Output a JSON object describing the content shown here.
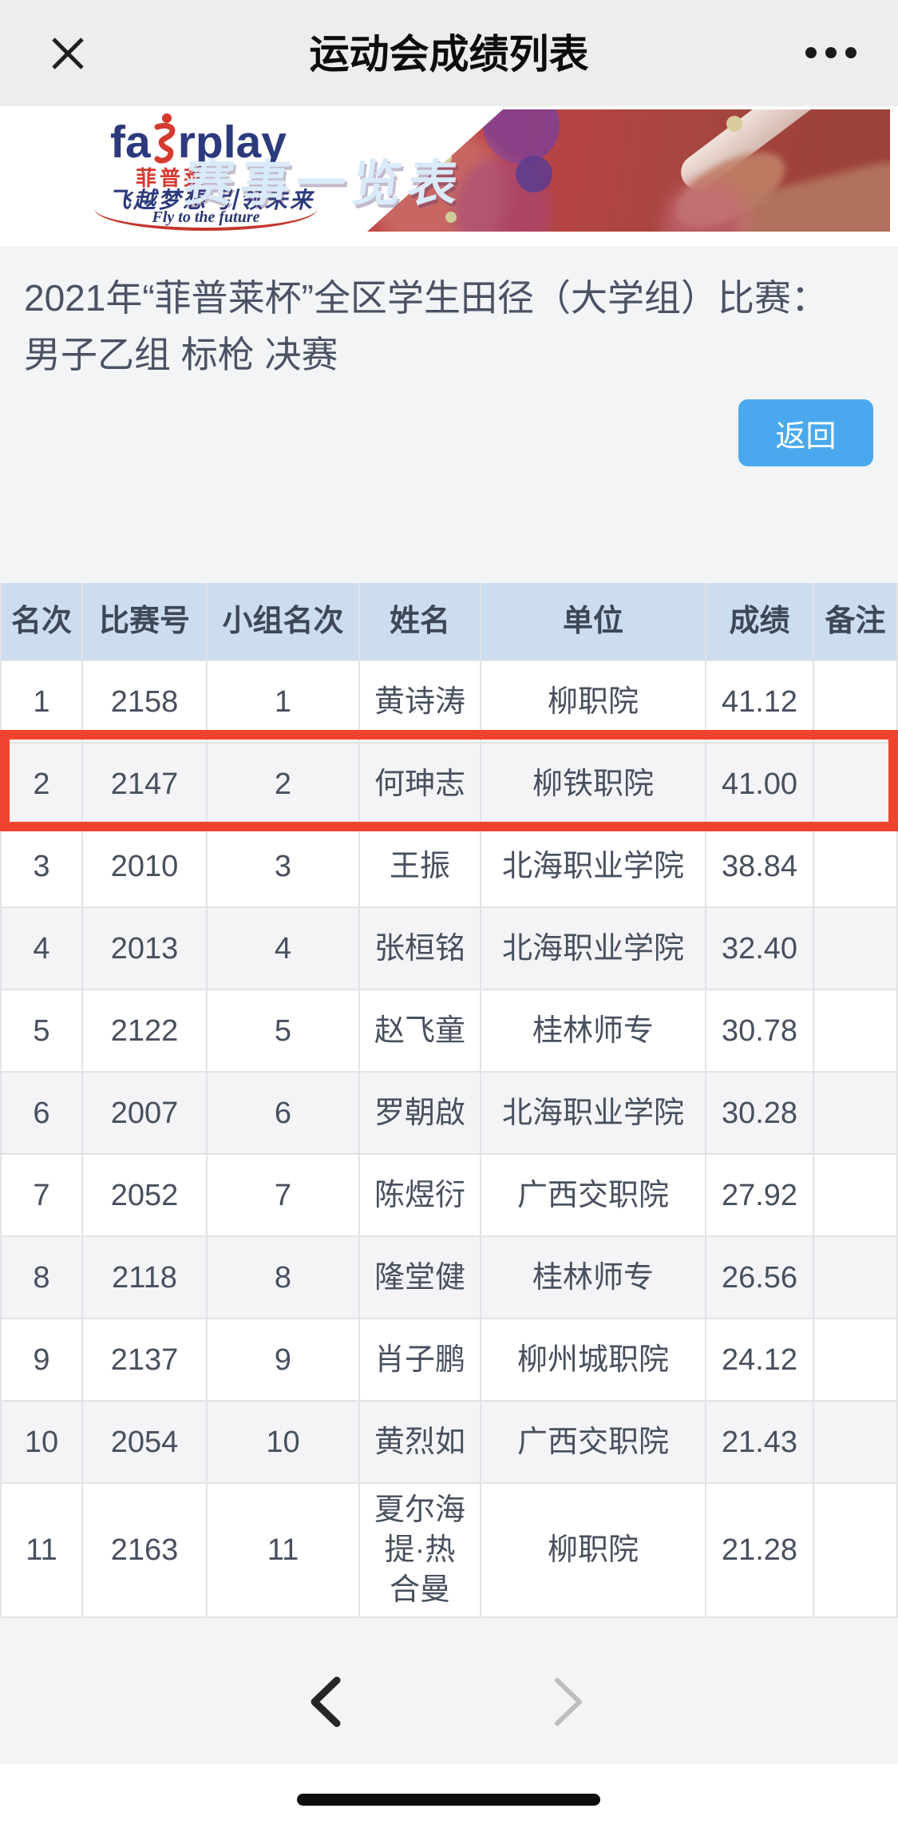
{
  "app": {
    "title": "运动会成绩列表"
  },
  "banner": {
    "logo_en_left": "fa",
    "logo_en_right": "rplay",
    "logo_cn": "菲普莱",
    "slogan_cn": "飞越梦想 引领未来",
    "slogan_en": "Fly to the future",
    "headline": "赛事一览表"
  },
  "event": {
    "title_line1": "2021年“菲普莱杯”全区学生田径（大学组）比赛：",
    "title_line2": "男子乙组 标枪 决赛"
  },
  "actions": {
    "back": "返回"
  },
  "results_table": {
    "columns": [
      "名次",
      "比赛号",
      "小组名次",
      "姓名",
      "单位",
      "成绩",
      "备注"
    ],
    "rows": [
      {
        "rank": "1",
        "bib": "2158",
        "group_rank": "1",
        "name": "黄诗涛",
        "unit": "柳职院",
        "score": "41.12",
        "note": ""
      },
      {
        "rank": "2",
        "bib": "2147",
        "group_rank": "2",
        "name": "何珅志",
        "unit": "柳铁职院",
        "score": "41.00",
        "note": ""
      },
      {
        "rank": "3",
        "bib": "2010",
        "group_rank": "3",
        "name": "王振",
        "unit": "北海职业学院",
        "score": "38.84",
        "note": ""
      },
      {
        "rank": "4",
        "bib": "2013",
        "group_rank": "4",
        "name": "张桓铭",
        "unit": "北海职业学院",
        "score": "32.40",
        "note": ""
      },
      {
        "rank": "5",
        "bib": "2122",
        "group_rank": "5",
        "name": "赵飞童",
        "unit": "桂林师专",
        "score": "30.78",
        "note": ""
      },
      {
        "rank": "6",
        "bib": "2007",
        "group_rank": "6",
        "name": "罗朝啟",
        "unit": "北海职业学院",
        "score": "30.28",
        "note": ""
      },
      {
        "rank": "7",
        "bib": "2052",
        "group_rank": "7",
        "name": "陈煜衍",
        "unit": "广西交职院",
        "score": "27.92",
        "note": ""
      },
      {
        "rank": "8",
        "bib": "2118",
        "group_rank": "8",
        "name": "隆堂健",
        "unit": "桂林师专",
        "score": "26.56",
        "note": ""
      },
      {
        "rank": "9",
        "bib": "2137",
        "group_rank": "9",
        "name": "肖子鹏",
        "unit": "柳州城职院",
        "score": "24.12",
        "note": ""
      },
      {
        "rank": "10",
        "bib": "2054",
        "group_rank": "10",
        "name": "黄烈如",
        "unit": "广西交职院",
        "score": "21.43",
        "note": ""
      },
      {
        "rank": "11",
        "bib": "2163",
        "group_rank": "11",
        "name": "夏尔海提·热合曼",
        "unit": "柳职院",
        "score": "21.28",
        "note": ""
      }
    ],
    "highlighted_row_index": 0
  },
  "pagination": {
    "prev_enabled": true,
    "next_enabled": false
  },
  "colors": {
    "highlight_red": "#f0432f",
    "button_blue": "#4aa9ee",
    "table_header_bg": "#ccddee",
    "banner_red": "#bf4346",
    "logo_navy": "#2c3a7d",
    "logo_red": "#d43a2f"
  }
}
